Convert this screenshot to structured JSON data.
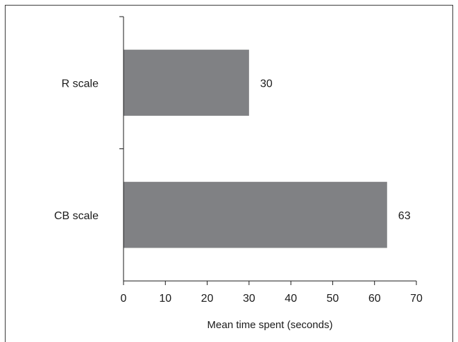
{
  "chart_data": {
    "type": "bar",
    "orientation": "horizontal",
    "categories": [
      "R scale",
      "CB scale"
    ],
    "values": [
      30,
      63
    ],
    "value_labels": [
      "30",
      "63"
    ],
    "xlabel": "Mean time spent (seconds)",
    "ylabel": "",
    "xlim": [
      0,
      70
    ],
    "x_ticks": [
      0,
      10,
      20,
      30,
      40,
      50,
      60,
      70
    ],
    "grid": false,
    "legend": "none",
    "bar_color": "#808184"
  }
}
